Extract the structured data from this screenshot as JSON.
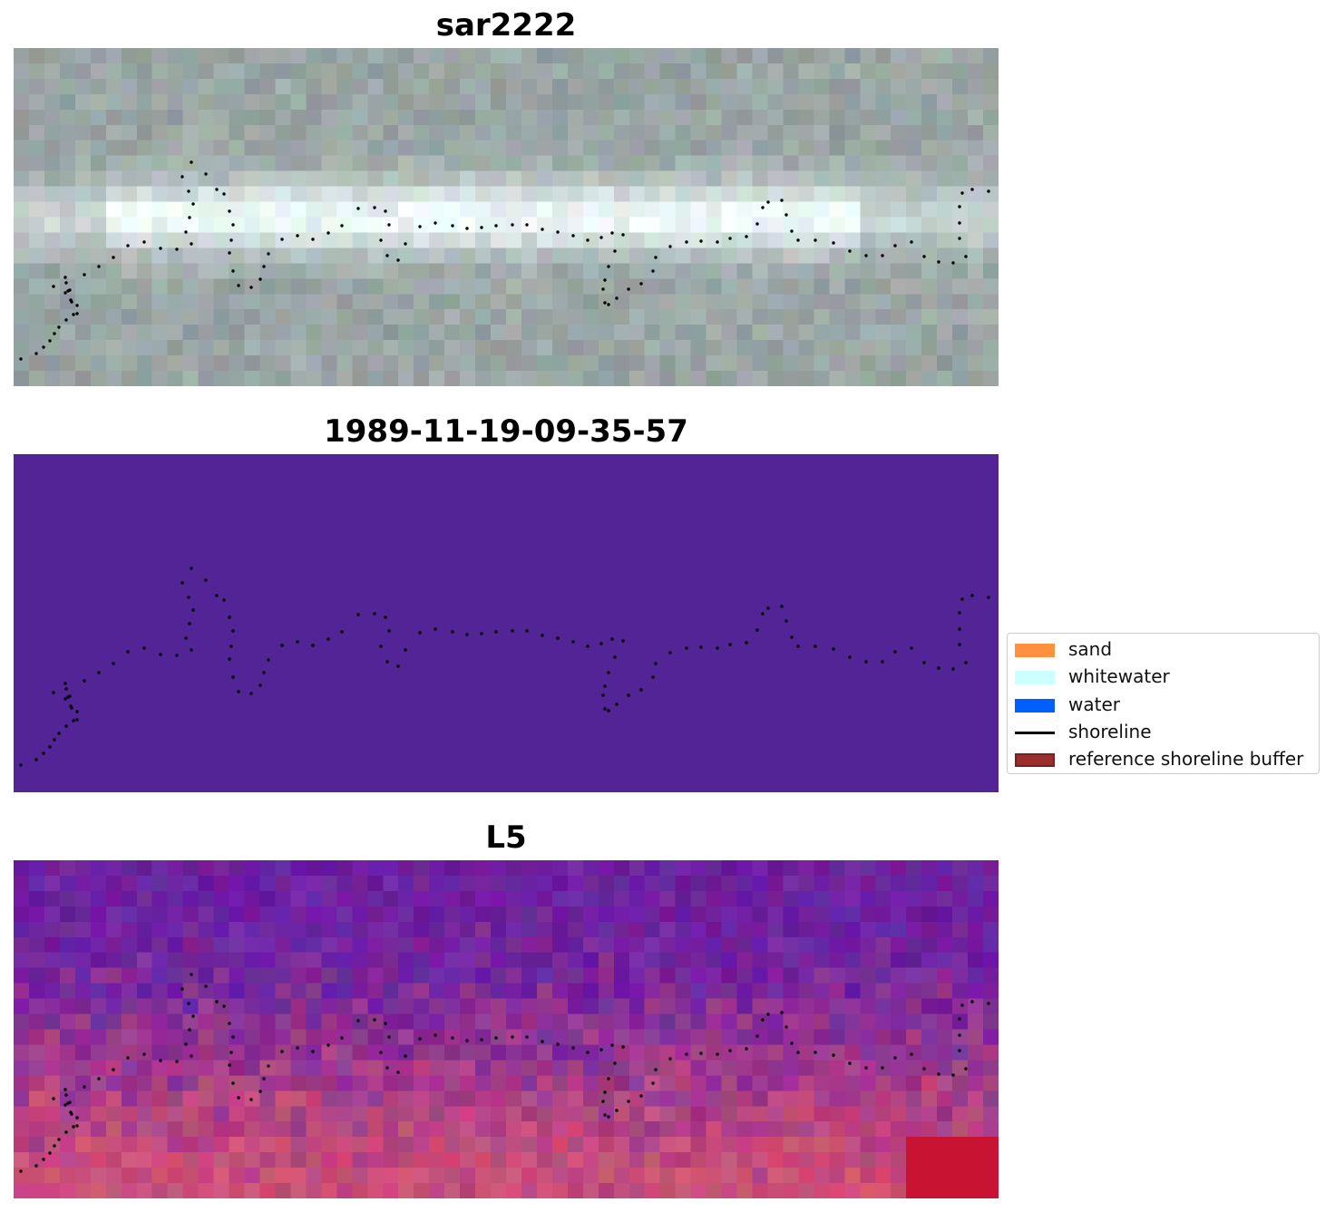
{
  "panels": [
    {
      "title": "sar2222",
      "palette": "grey"
    },
    {
      "title": "1989-11-19-09-35-57",
      "palette": "class",
      "fill": "#532496"
    },
    {
      "title": "L5",
      "palette": "magenta"
    }
  ],
  "legend": {
    "items": [
      {
        "label": "sand",
        "color": "#ff9040",
        "kind": "patch"
      },
      {
        "label": "whitewater",
        "color": "#ccffff",
        "kind": "patch"
      },
      {
        "label": "water",
        "color": "#0060ff",
        "kind": "patch"
      },
      {
        "label": "shoreline",
        "color": "#000000",
        "kind": "line"
      },
      {
        "label": "reference shoreline buffer",
        "color": "#9b2d2d",
        "kind": "patch-edge"
      }
    ]
  },
  "colors": {
    "shoreline_points": "#000000",
    "class_background": "#532496"
  }
}
